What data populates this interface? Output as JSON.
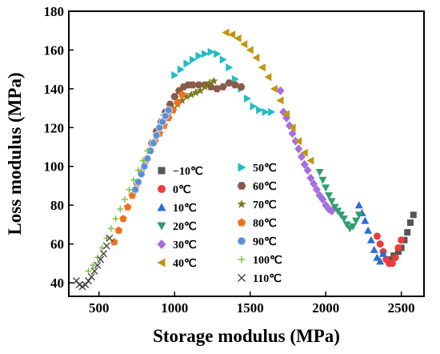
{
  "chart_data": {
    "type": "scatter",
    "xlabel": "Storage modulus (MPa)",
    "ylabel": "Loss modulus (MPa)",
    "xlim": [
      300,
      2650
    ],
    "ylim": [
      33,
      180
    ],
    "xticks": [
      500,
      1000,
      1500,
      2000,
      2500
    ],
    "yticks": [
      40,
      60,
      80,
      100,
      120,
      140,
      160,
      180
    ],
    "grid": false,
    "legend_position": "center",
    "series": [
      {
        "name": "−10℃",
        "marker": "square",
        "color": "#555555",
        "x": [
          2420,
          2450,
          2480,
          2500,
          2520,
          2540,
          2560,
          2580
        ],
        "y": [
          52,
          54,
          56,
          58,
          62,
          66,
          71,
          75
        ]
      },
      {
        "name": "0℃",
        "marker": "circle",
        "color": "#ee3b3b",
        "x": [
          2340,
          2360,
          2380,
          2400,
          2420,
          2440,
          2460,
          2480,
          2500
        ],
        "y": [
          64,
          60,
          56,
          52,
          50,
          50,
          53,
          58,
          62
        ]
      },
      {
        "name": "10℃",
        "marker": "triangle-up",
        "color": "#2a6ed6",
        "x": [
          2220,
          2240,
          2260,
          2280,
          2300,
          2320,
          2340,
          2360,
          2380
        ],
        "y": [
          80,
          76,
          72,
          67,
          62,
          57,
          53,
          51,
          55
        ]
      },
      {
        "name": "20℃",
        "marker": "triangle-down",
        "color": "#2f9e6e",
        "x": [
          1960,
          1980,
          2000,
          2020,
          2040,
          2060,
          2080,
          2100,
          2120,
          2140,
          2160,
          2180,
          2200,
          2220
        ],
        "y": [
          97,
          93,
          89,
          85,
          82,
          79,
          77,
          75,
          73,
          70,
          68,
          69,
          72,
          75
        ]
      },
      {
        "name": "30℃",
        "marker": "diamond",
        "color": "#a66ee0",
        "x": [
          1700,
          1720,
          1740,
          1760,
          1780,
          1800,
          1820,
          1840,
          1860,
          1880,
          1900,
          1920,
          1940,
          1960,
          1980,
          2000,
          2020,
          2040
        ],
        "y": [
          139,
          128,
          125,
          121,
          117,
          113,
          109,
          105,
          101,
          98,
          94,
          91,
          88,
          85,
          83,
          80,
          78,
          77
        ]
      },
      {
        "name": "40℃",
        "marker": "triangle-left",
        "color": "#c2960c",
        "x": [
          1340,
          1380,
          1420,
          1460,
          1500,
          1540,
          1580,
          1620,
          1660,
          1700,
          1740,
          1780,
          1820,
          1860,
          1900
        ],
        "y": [
          169,
          168,
          166,
          163,
          160,
          156,
          151,
          146,
          140,
          134,
          127,
          120,
          113,
          107,
          103
        ]
      },
      {
        "name": "50℃",
        "marker": "triangle-right",
        "color": "#1fbcc4",
        "x": [
          1000,
          1040,
          1080,
          1120,
          1160,
          1200,
          1240,
          1280,
          1320,
          1360,
          1400,
          1440,
          1480,
          1520,
          1560,
          1600,
          1640
        ],
        "y": [
          147,
          150,
          153,
          155,
          157,
          158,
          159,
          158,
          155,
          151,
          145,
          140,
          135,
          131,
          129,
          128,
          128
        ]
      },
      {
        "name": "60℃",
        "marker": "hexagon",
        "color": "#8a5a4a",
        "x": [
          850,
          880,
          910,
          940,
          970,
          1000,
          1030,
          1060,
          1090,
          1120,
          1160,
          1200,
          1240,
          1280,
          1320,
          1360,
          1400,
          1440
        ],
        "y": [
          112,
          118,
          123,
          128,
          132,
          136,
          139,
          141,
          142,
          142,
          142,
          142,
          141,
          140,
          141,
          143,
          142,
          141
        ]
      },
      {
        "name": "70℃",
        "marker": "star",
        "color": "#7a7a1f",
        "x": [
          930,
          960,
          990,
          1020,
          1050,
          1080,
          1110,
          1140,
          1170,
          1200,
          1230,
          1260
        ],
        "y": [
          126,
          128,
          130,
          132,
          134,
          136,
          137,
          138,
          139,
          141,
          143,
          144
        ]
      },
      {
        "name": "80℃",
        "marker": "pentagon",
        "color": "#f07020",
        "x": [
          600,
          630,
          660,
          690,
          720,
          750,
          780,
          810,
          840,
          870,
          900,
          930,
          960,
          990,
          1020,
          1050
        ],
        "y": [
          61,
          67,
          73,
          79,
          85,
          91,
          97,
          103,
          108,
          113,
          117,
          121,
          125,
          129,
          133,
          137
        ]
      },
      {
        "name": "90℃",
        "marker": "sphere",
        "color": "#5b8ed6",
        "x": [
          740,
          760,
          780,
          800,
          820,
          840,
          860,
          880,
          900,
          920,
          940,
          960
        ],
        "y": [
          88,
          92,
          96,
          100,
          104,
          108,
          112,
          116,
          120,
          123,
          126,
          129
        ]
      },
      {
        "name": "100℃",
        "marker": "plus",
        "color": "#7cc447",
        "x": [
          430,
          460,
          490,
          520,
          550,
          580,
          610,
          640,
          670,
          700,
          730,
          760,
          790,
          820
        ],
        "y": [
          46,
          49,
          53,
          58,
          63,
          68,
          73,
          78,
          83,
          88,
          93,
          98,
          103,
          108
        ]
      },
      {
        "name": "110℃",
        "marker": "x",
        "color": "#444444",
        "x": [
          350,
          370,
          390,
          410,
          430,
          450,
          470,
          490,
          510,
          530,
          550,
          570
        ],
        "y": [
          41,
          39,
          38,
          39,
          41,
          43,
          46,
          49,
          52,
          55,
          59,
          63
        ]
      }
    ]
  }
}
